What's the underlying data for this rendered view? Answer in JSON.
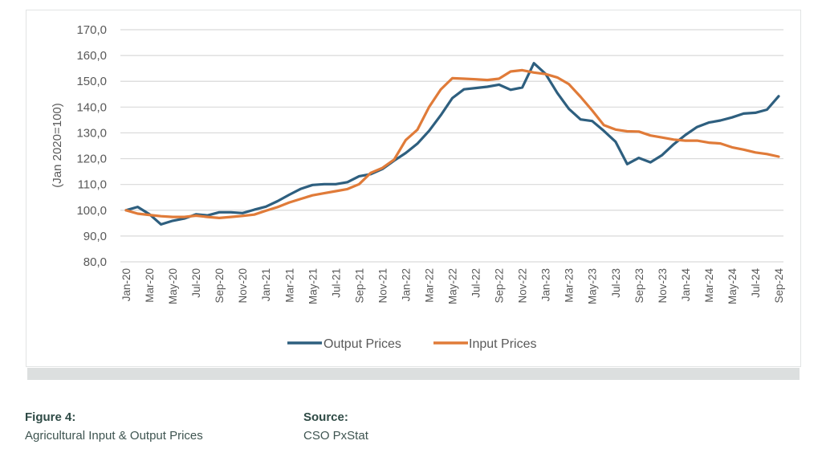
{
  "chart_data": {
    "type": "line",
    "title": "",
    "xlabel": "",
    "ylabel": "(Jan 2020=100)",
    "ylim": [
      80,
      170
    ],
    "yticks": [
      "80,0",
      "90,0",
      "100,0",
      "110,0",
      "120,0",
      "130,0",
      "140,0",
      "150,0",
      "160,0",
      "170,0"
    ],
    "ytick_values": [
      80,
      90,
      100,
      110,
      120,
      130,
      140,
      150,
      160,
      170
    ],
    "grid": true,
    "legend_position": "bottom",
    "x": [
      "Jan-20",
      "Feb-20",
      "Mar-20",
      "Apr-20",
      "May-20",
      "Jun-20",
      "Jul-20",
      "Aug-20",
      "Sep-20",
      "Oct-20",
      "Nov-20",
      "Dec-20",
      "Jan-21",
      "Feb-21",
      "Mar-21",
      "Apr-21",
      "May-21",
      "Jun-21",
      "Jul-21",
      "Aug-21",
      "Sep-21",
      "Oct-21",
      "Nov-21",
      "Dec-21",
      "Jan-22",
      "Feb-22",
      "Mar-22",
      "Apr-22",
      "May-22",
      "Jun-22",
      "Jul-22",
      "Aug-22",
      "Sep-22",
      "Oct-22",
      "Nov-22",
      "Dec-22",
      "Jan-23",
      "Feb-23",
      "Mar-23",
      "Apr-23",
      "May-23",
      "Jun-23",
      "Jul-23",
      "Aug-23",
      "Sep-23",
      "Oct-23",
      "Nov-23",
      "Dec-23",
      "Jan-24",
      "Feb-24",
      "Mar-24",
      "Apr-24",
      "May-24",
      "Jun-24",
      "Jul-24",
      "Aug-24",
      "Sep-24"
    ],
    "xtick_labels": [
      "Jan-20",
      "Mar-20",
      "May-20",
      "Jul-20",
      "Sep-20",
      "Nov-20",
      "Jan-21",
      "Mar-21",
      "May-21",
      "Jul-21",
      "Sep-21",
      "Nov-21",
      "Jan-22",
      "Mar-22",
      "May-22",
      "Jul-22",
      "Sep-22",
      "Nov-22",
      "Jan-23",
      "Mar-23",
      "May-23",
      "Jul-23",
      "Sep-23",
      "Nov-23",
      "Jan-24",
      "Mar-24",
      "May-24",
      "Jul-24",
      "Sep-24"
    ],
    "series": [
      {
        "name": "Output Prices",
        "color": "#2e5f7f",
        "values": [
          100.0,
          101.3,
          98.5,
          94.5,
          95.9,
          96.8,
          98.4,
          98.0,
          99.2,
          99.2,
          98.9,
          100.2,
          101.4,
          103.5,
          106.0,
          108.3,
          109.8,
          110.1,
          110.1,
          110.9,
          113.2,
          114.0,
          116.0,
          119.2,
          122.2,
          125.8,
          130.8,
          136.8,
          143.5,
          146.9,
          147.4,
          147.9,
          148.7,
          146.7,
          147.6,
          157.0,
          152.9,
          145.5,
          139.3,
          135.2,
          134.6,
          130.8,
          126.6,
          117.9,
          120.3,
          118.6,
          121.4,
          125.6,
          129.2,
          132.3,
          134.0,
          134.8,
          136.0,
          137.5,
          137.8,
          139.0,
          144.2
        ]
      },
      {
        "name": "Input Prices",
        "color": "#e07b39",
        "values": [
          100.0,
          98.7,
          98.2,
          97.7,
          97.4,
          97.4,
          97.9,
          97.4,
          97.0,
          97.4,
          97.8,
          98.3,
          99.8,
          101.2,
          103.0,
          104.4,
          105.8,
          106.6,
          107.4,
          108.2,
          110.1,
          114.5,
          116.4,
          119.6,
          127.2,
          131.2,
          140.0,
          146.8,
          151.2,
          151.0,
          150.8,
          150.5,
          151.0,
          153.8,
          154.3,
          153.4,
          152.8,
          151.5,
          148.9,
          144.0,
          138.7,
          133.0,
          131.3,
          130.6,
          130.5,
          129.0,
          128.2,
          127.4,
          127.0,
          127.0,
          126.2,
          125.9,
          124.4,
          123.5,
          122.4,
          121.8,
          120.8
        ]
      }
    ]
  },
  "legend": {
    "items": [
      {
        "label": "Output Prices",
        "color": "#2e5f7f"
      },
      {
        "label": "Input Prices",
        "color": "#e07b39"
      }
    ]
  },
  "caption": {
    "figure_label": "Figure 4:",
    "figure_text": "Agricultural Input & Output Prices",
    "source_label": "Source:",
    "source_text": "CSO PxStat"
  }
}
